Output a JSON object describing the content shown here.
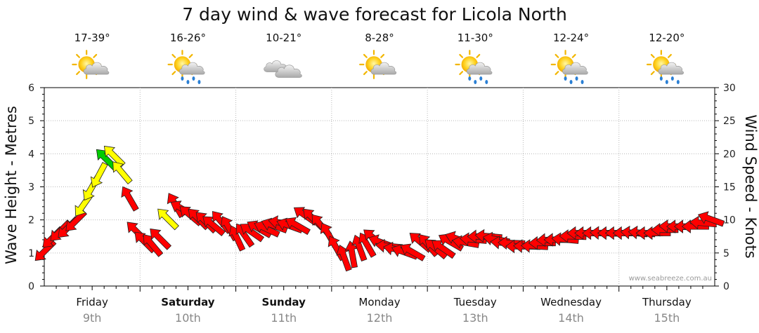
{
  "chart_data": {
    "type": "line",
    "title": "7 day wind & wave forecast for Licola North",
    "ylabel_left": "Wave Height - Metres",
    "ylabel_right": "Wind Speed - Knots",
    "ylim_left": [
      0,
      6
    ],
    "ylim_right": [
      0,
      30
    ],
    "yticks_left": [
      "0",
      "1",
      "2",
      "3",
      "4",
      "5",
      "6"
    ],
    "yticks_right": [
      "0",
      "5",
      "10",
      "15",
      "20",
      "25",
      "30"
    ],
    "grid": true,
    "watermark": "www.seabreeze.com.au",
    "days": [
      {
        "name": "Friday",
        "date": "9th",
        "bold": false,
        "temp": "17-39°",
        "icon": "partly-cloudy-icon"
      },
      {
        "name": "Saturday",
        "date": "10th",
        "bold": true,
        "temp": "16-26°",
        "icon": "partly-cloudy-rain-icon"
      },
      {
        "name": "Sunday",
        "date": "11th",
        "bold": true,
        "temp": "10-21°",
        "icon": "cloudy-icon"
      },
      {
        "name": "Monday",
        "date": "12th",
        "bold": false,
        "temp": "8-28°",
        "icon": "partly-cloudy-icon"
      },
      {
        "name": "Tuesday",
        "date": "13th",
        "bold": false,
        "temp": "11-30°",
        "icon": "partly-cloudy-rain-icon"
      },
      {
        "name": "Wednesday",
        "date": "14th",
        "bold": false,
        "temp": "12-24°",
        "icon": "partly-cloudy-rain-icon"
      },
      {
        "name": "Thursday",
        "date": "15th",
        "bold": false,
        "temp": "12-20°",
        "icon": "partly-cloudy-rain-icon"
      }
    ],
    "wind_series": {
      "name": "Wind Speed",
      "x_day": [
        0.0,
        0.08,
        0.16,
        0.24,
        0.32,
        0.4,
        0.48,
        0.56,
        0.64,
        0.72,
        0.8,
        0.88,
        0.96,
        1.04,
        1.12,
        1.2,
        1.28,
        1.36,
        1.44,
        1.52,
        1.6,
        1.68,
        1.76,
        1.84,
        1.92,
        2.0,
        2.08,
        2.16,
        2.24,
        2.32,
        2.4,
        2.48,
        2.56,
        2.64,
        2.72,
        2.8,
        2.88,
        2.96,
        3.04,
        3.12,
        3.2,
        3.28,
        3.36,
        3.44,
        3.52,
        3.6,
        3.68,
        3.76,
        3.84,
        3.92,
        4.0,
        4.08,
        4.16,
        4.24,
        4.32,
        4.4,
        4.48,
        4.56,
        4.64,
        4.72,
        4.8,
        4.88,
        4.96,
        5.04,
        5.12,
        5.2,
        5.28,
        5.36,
        5.44,
        5.52,
        5.6,
        5.68,
        5.76,
        5.84,
        5.92,
        6.0,
        6.08,
        6.16,
        6.24,
        6.32,
        6.4,
        6.48,
        6.56,
        6.64,
        6.72,
        6.8,
        6.88,
        6.96
      ],
      "knots": [
        5.5,
        7.5,
        8.5,
        9,
        10,
        12.5,
        15,
        17,
        19,
        19.5,
        17,
        13,
        8,
        6.5,
        6,
        7,
        10,
        12,
        11.5,
        10.5,
        10,
        9.5,
        9,
        9.5,
        8.5,
        7,
        7.5,
        8,
        8.5,
        8.5,
        9,
        9.5,
        9,
        9,
        10.5,
        10,
        9,
        7.5,
        5.5,
        4,
        4.5,
        5.5,
        6,
        7,
        6.5,
        6,
        5.5,
        5,
        5,
        6.5,
        6,
        5.5,
        5.5,
        6.5,
        7,
        6.5,
        7,
        7.5,
        7.5,
        7,
        6.5,
        6.5,
        6,
        6,
        6,
        6.5,
        7,
        7,
        7,
        7.5,
        8,
        8,
        8,
        8,
        8,
        8,
        8,
        8,
        8,
        8,
        8,
        8.5,
        9,
        9,
        9,
        9,
        9.5,
        10
      ],
      "dir_deg": [
        45,
        45,
        45,
        45,
        45,
        35,
        30,
        28,
        135,
        135,
        140,
        150,
        135,
        135,
        140,
        135,
        135,
        150,
        120,
        130,
        135,
        135,
        130,
        140,
        150,
        155,
        145,
        125,
        120,
        115,
        110,
        100,
        110,
        120,
        125,
        135,
        140,
        150,
        150,
        160,
        170,
        160,
        150,
        130,
        110,
        95,
        100,
        110,
        120,
        130,
        140,
        130,
        125,
        120,
        110,
        100,
        95,
        90,
        95,
        100,
        95,
        92,
        90,
        92,
        93,
        90,
        88,
        90,
        95,
        92,
        90,
        90,
        90,
        92,
        90,
        90,
        90,
        95,
        95,
        90,
        90,
        90,
        92,
        90,
        90,
        90,
        95,
        110
      ],
      "colors": [
        "#ff0000",
        "#ff0000",
        "#ff0000",
        "#ff0000",
        "#ff0000",
        "#ffff00",
        "#ffff00",
        "#ffff00",
        "#00cc00",
        "#ffff00",
        "#ffff00",
        "#ff0000",
        "#ff0000",
        "#ff0000",
        "#ff0000",
        "#ff0000",
        "#ffff00",
        "#ff0000",
        "#ff0000",
        "#ff0000",
        "#ff0000",
        "#ff0000",
        "#ff0000",
        "#ff0000",
        "#ff0000",
        "#ff0000",
        "#ff0000",
        "#ff0000",
        "#ff0000",
        "#ff0000",
        "#ff0000",
        "#ff0000",
        "#ff0000",
        "#ff0000",
        "#ff0000",
        "#ff0000",
        "#ff0000",
        "#ff0000",
        "#ff0000",
        "#ff0000",
        "#ff0000",
        "#ff0000",
        "#ff0000",
        "#ff0000",
        "#ff0000",
        "#ff0000",
        "#ff0000",
        "#ff0000",
        "#ff0000",
        "#ff0000",
        "#ff0000",
        "#ff0000",
        "#ff0000",
        "#ff0000",
        "#ff0000",
        "#ff0000",
        "#ff0000",
        "#ff0000",
        "#ff0000",
        "#ff0000",
        "#ff0000",
        "#ff0000",
        "#ff0000",
        "#ff0000",
        "#ff0000",
        "#ff0000",
        "#ff0000",
        "#ff0000",
        "#ff0000",
        "#ff0000",
        "#ff0000",
        "#ff0000",
        "#ff0000",
        "#ff0000",
        "#ff0000",
        "#ff0000",
        "#ff0000",
        "#ff0000",
        "#ff0000",
        "#ff0000",
        "#ff0000",
        "#ff0000",
        "#ff0000",
        "#ff0000",
        "#ff0000",
        "#ff0000",
        "#ff0000",
        "#ff0000"
      ]
    }
  }
}
